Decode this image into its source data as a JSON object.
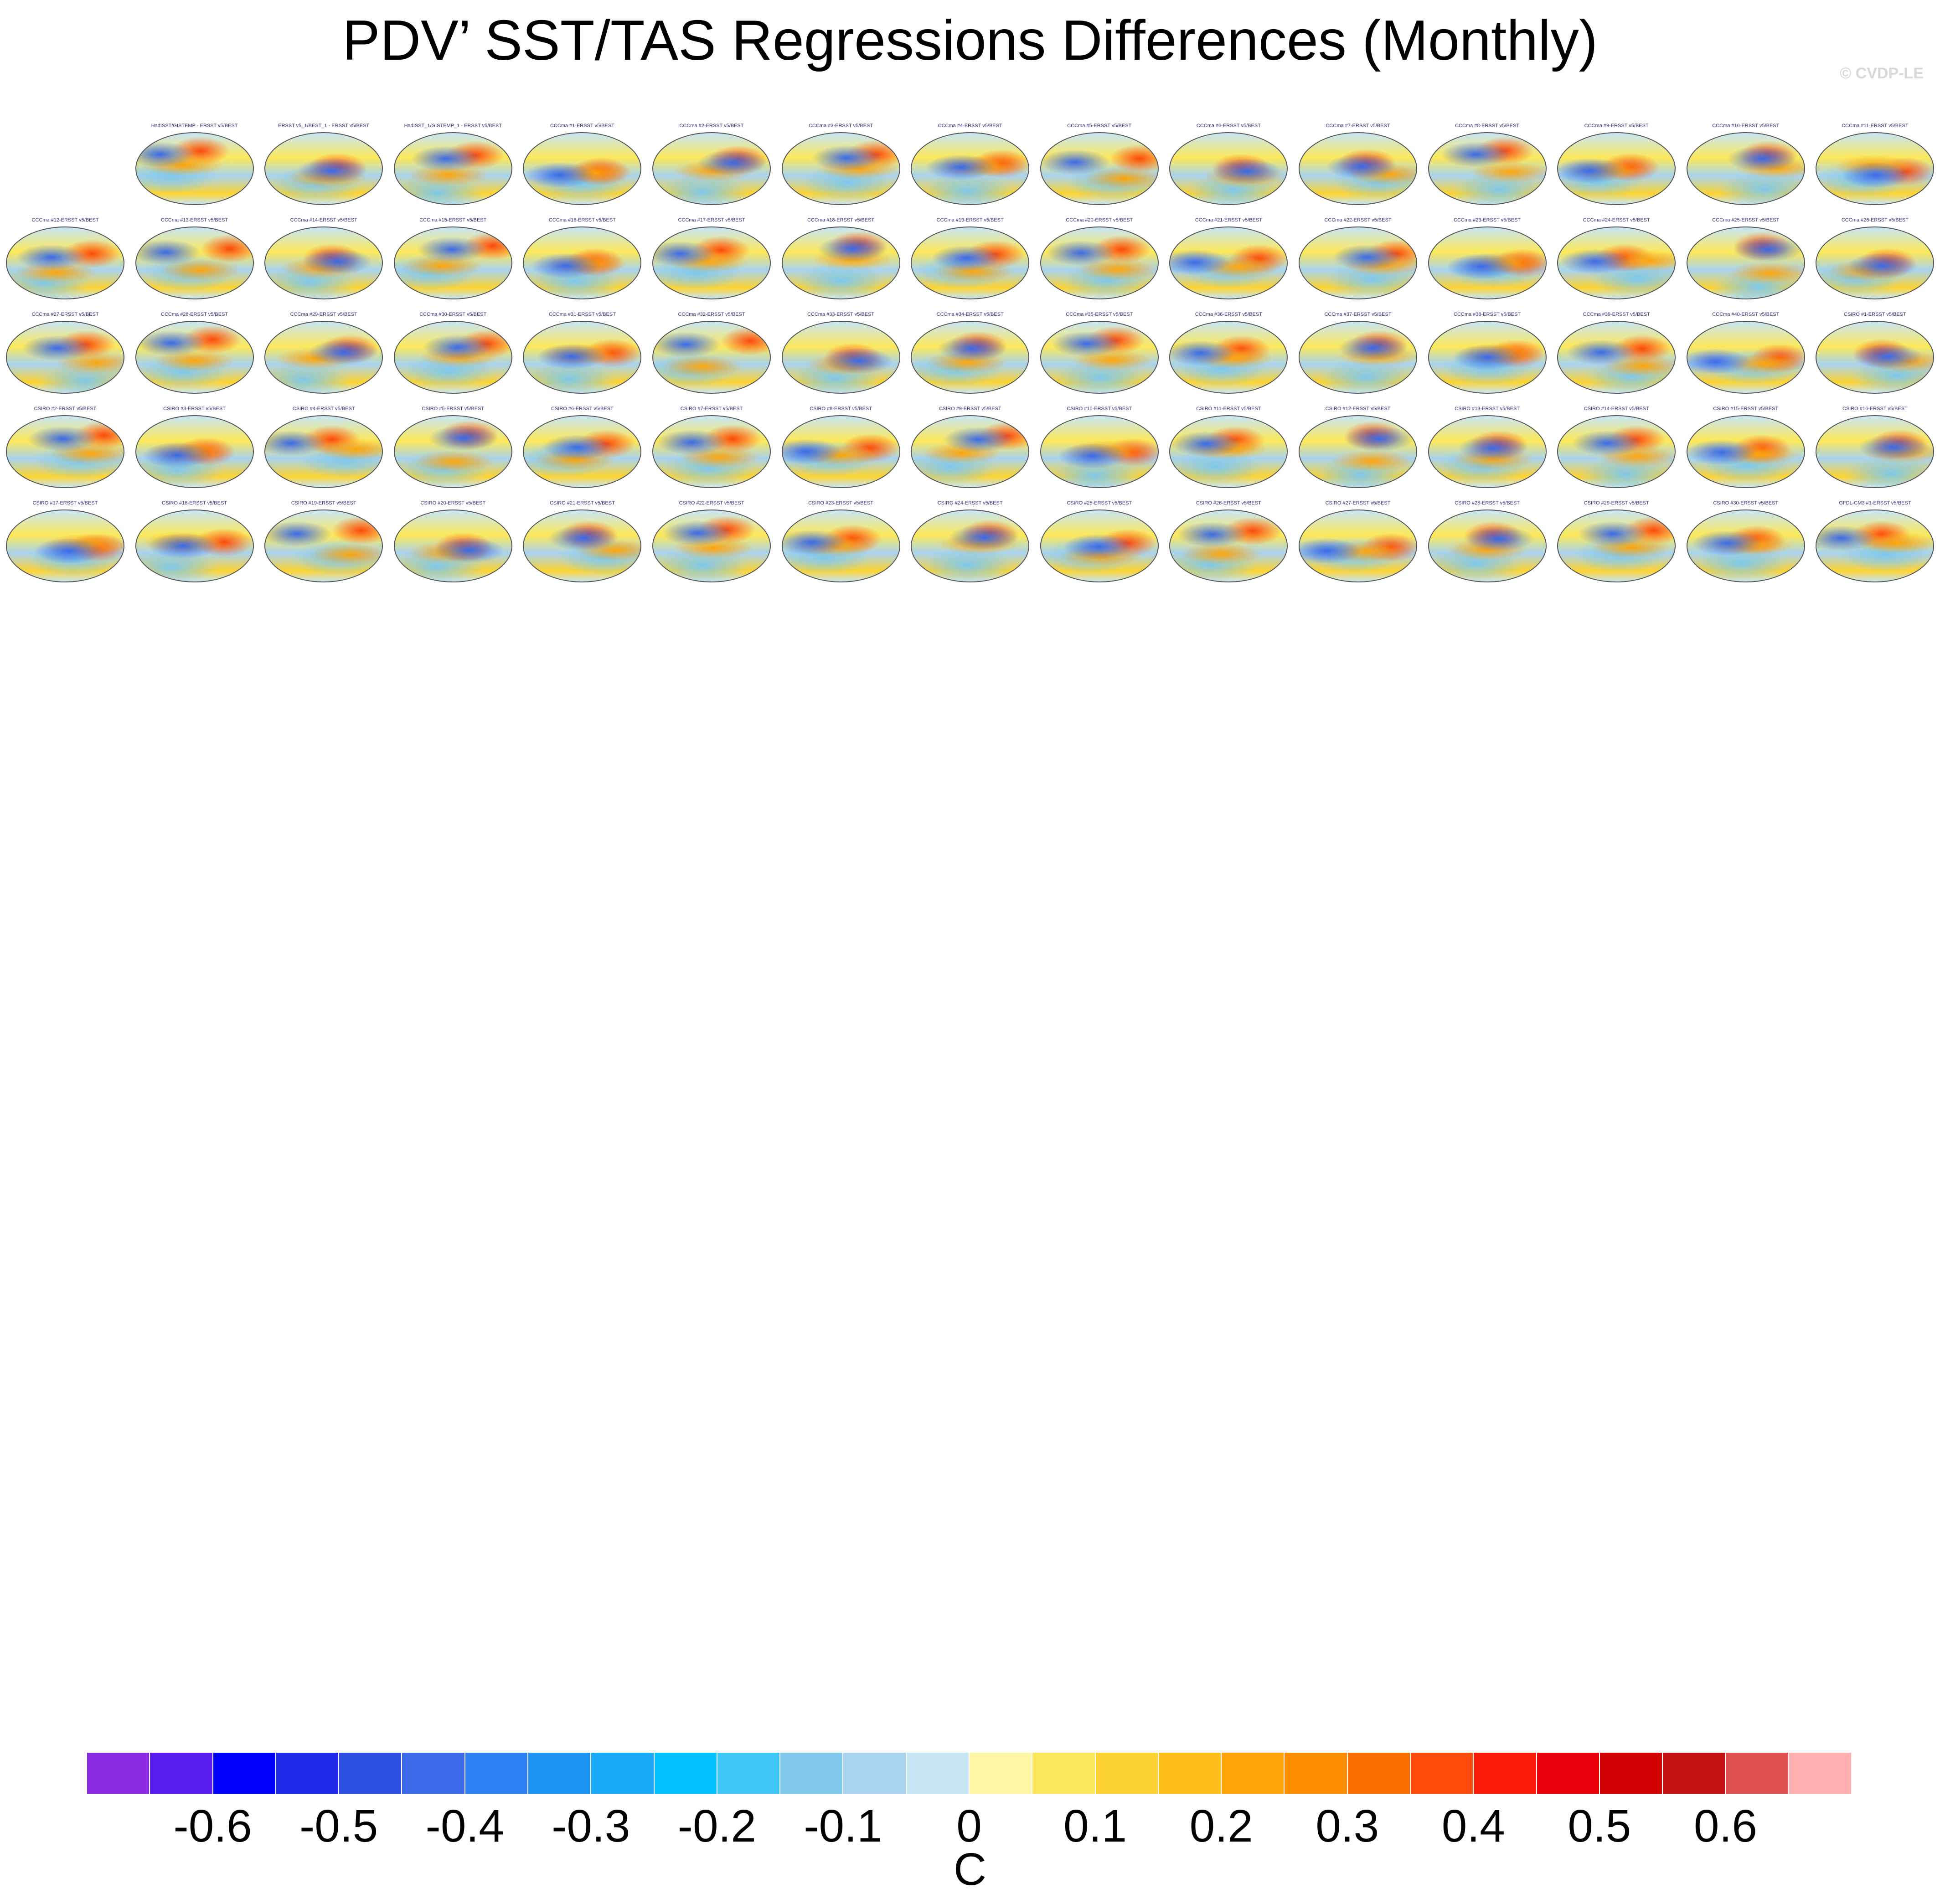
{
  "title": "PDV’ SST/TAS Regressions Differences (Monthly)",
  "credit": "© CVDP-LE",
  "chart_data": {
    "type": "heatmap",
    "title": "PDV’ SST/TAS Regressions Differences (Monthly)",
    "colorbar": {
      "units": "C",
      "tick_labels": [
        "-0.6",
        "-0.5",
        "-0.4",
        "-0.3",
        "-0.2",
        "-0.1",
        "0",
        "0.1",
        "0.2",
        "0.3",
        "0.4",
        "0.5",
        "0.6"
      ],
      "tick_values": [
        -0.6,
        -0.5,
        -0.4,
        -0.3,
        -0.2,
        -0.1,
        0,
        0.1,
        0.2,
        0.3,
        0.4,
        0.5,
        0.6
      ],
      "colors": [
        "#8a2be2",
        "#5a1ef0",
        "#0000ff",
        "#1e28e6",
        "#2f4fe0",
        "#3a6ae8",
        "#2f80f0",
        "#1e95f5",
        "#17a8f8",
        "#00c0ff",
        "#40c6f4",
        "#7fc8ec",
        "#a8d3f0",
        "#c8e6f5",
        "#fff6a8",
        "#fce85a",
        "#fcd333",
        "#fdbd1a",
        "#fda40a",
        "#fd8c00",
        "#fc7000",
        "#fb4a0a",
        "#fa1e0a",
        "#e8000a",
        "#d00000",
        "#c41010",
        "#e05050",
        "#ffb0b0"
      ]
    },
    "panels": [
      {
        "label": "HadISST/GISTEMP - ERSST v5/BEST",
        "row": 0,
        "col": 1
      },
      {
        "label": "ERSST v5_1/BEST_1 - ERSST v5/BEST",
        "row": 0,
        "col": 2
      },
      {
        "label": "HadISST_1/GISTEMP_1 - ERSST v5/BEST",
        "row": 0,
        "col": 3
      },
      {
        "label": "CCCma #1-ERSST v5/BEST",
        "row": 0,
        "col": 4
      },
      {
        "label": "CCCma #2-ERSST v5/BEST",
        "row": 0,
        "col": 5
      },
      {
        "label": "CCCma #3-ERSST v5/BEST",
        "row": 0,
        "col": 6
      },
      {
        "label": "CCCma #4-ERSST v5/BEST",
        "row": 0,
        "col": 7
      },
      {
        "label": "CCCma #5-ERSST v5/BEST",
        "row": 0,
        "col": 8
      },
      {
        "label": "CCCma #6-ERSST v5/BEST",
        "row": 0,
        "col": 9
      },
      {
        "label": "CCCma #7-ERSST v5/BEST",
        "row": 0,
        "col": 10
      },
      {
        "label": "CCCma #8-ERSST v5/BEST",
        "row": 0,
        "col": 11
      },
      {
        "label": "CCCma #9-ERSST v5/BEST",
        "row": 0,
        "col": 12
      },
      {
        "label": "CCCma #10-ERSST v5/BEST",
        "row": 0,
        "col": 13
      },
      {
        "label": "CCCma #11-ERSST v5/BEST",
        "row": 0,
        "col": 14
      },
      {
        "label": "CCCma #12-ERSST v5/BEST",
        "row": 1,
        "col": 0
      },
      {
        "label": "CCCma #13-ERSST v5/BEST",
        "row": 1,
        "col": 1
      },
      {
        "label": "CCCma #14-ERSST v5/BEST",
        "row": 1,
        "col": 2
      },
      {
        "label": "CCCma #15-ERSST v5/BEST",
        "row": 1,
        "col": 3
      },
      {
        "label": "CCCma #16-ERSST v5/BEST",
        "row": 1,
        "col": 4
      },
      {
        "label": "CCCma #17-ERSST v5/BEST",
        "row": 1,
        "col": 5
      },
      {
        "label": "CCCma #18-ERSST v5/BEST",
        "row": 1,
        "col": 6
      },
      {
        "label": "CCCma #19-ERSST v5/BEST",
        "row": 1,
        "col": 7
      },
      {
        "label": "CCCma #20-ERSST v5/BEST",
        "row": 1,
        "col": 8
      },
      {
        "label": "CCCma #21-ERSST v5/BEST",
        "row": 1,
        "col": 9
      },
      {
        "label": "CCCma #22-ERSST v5/BEST",
        "row": 1,
        "col": 10
      },
      {
        "label": "CCCma #23-ERSST v5/BEST",
        "row": 1,
        "col": 11
      },
      {
        "label": "CCCma #24-ERSST v5/BEST",
        "row": 1,
        "col": 12
      },
      {
        "label": "CCCma #25-ERSST v5/BEST",
        "row": 1,
        "col": 13
      },
      {
        "label": "CCCma #26-ERSST v5/BEST",
        "row": 1,
        "col": 14
      },
      {
        "label": "CCCma #27-ERSST v5/BEST",
        "row": 2,
        "col": 0
      },
      {
        "label": "CCCma #28-ERSST v5/BEST",
        "row": 2,
        "col": 1
      },
      {
        "label": "CCCma #29-ERSST v5/BEST",
        "row": 2,
        "col": 2
      },
      {
        "label": "CCCma #30-ERSST v5/BEST",
        "row": 2,
        "col": 3
      },
      {
        "label": "CCCma #31-ERSST v5/BEST",
        "row": 2,
        "col": 4
      },
      {
        "label": "CCCma #32-ERSST v5/BEST",
        "row": 2,
        "col": 5
      },
      {
        "label": "CCCma #33-ERSST v5/BEST",
        "row": 2,
        "col": 6
      },
      {
        "label": "CCCma #34-ERSST v5/BEST",
        "row": 2,
        "col": 7
      },
      {
        "label": "CCCma #35-ERSST v5/BEST",
        "row": 2,
        "col": 8
      },
      {
        "label": "CCCma #36-ERSST v5/BEST",
        "row": 2,
        "col": 9
      },
      {
        "label": "CCCma #37-ERSST v5/BEST",
        "row": 2,
        "col": 10
      },
      {
        "label": "CCCma #38-ERSST v5/BEST",
        "row": 2,
        "col": 11
      },
      {
        "label": "CCCma #39-ERSST v5/BEST",
        "row": 2,
        "col": 12
      },
      {
        "label": "CCCma #40-ERSST v5/BEST",
        "row": 2,
        "col": 13
      },
      {
        "label": "CSIRO #1-ERSST v5/BEST",
        "row": 2,
        "col": 14
      },
      {
        "label": "CSIRO #2-ERSST v5/BEST",
        "row": 3,
        "col": 0
      },
      {
        "label": "CSIRO #3-ERSST v5/BEST",
        "row": 3,
        "col": 1
      },
      {
        "label": "CSIRO #4-ERSST v5/BEST",
        "row": 3,
        "col": 2
      },
      {
        "label": "CSIRO #5-ERSST v5/BEST",
        "row": 3,
        "col": 3
      },
      {
        "label": "CSIRO #6-ERSST v5/BEST",
        "row": 3,
        "col": 4
      },
      {
        "label": "CSIRO #7-ERSST v5/BEST",
        "row": 3,
        "col": 5
      },
      {
        "label": "CSIRO #8-ERSST v5/BEST",
        "row": 3,
        "col": 6
      },
      {
        "label": "CSIRO #9-ERSST v5/BEST",
        "row": 3,
        "col": 7
      },
      {
        "label": "CSIRO #10-ERSST v5/BEST",
        "row": 3,
        "col": 8
      },
      {
        "label": "CSIRO #11-ERSST v5/BEST",
        "row": 3,
        "col": 9
      },
      {
        "label": "CSIRO #12-ERSST v5/BEST",
        "row": 3,
        "col": 10
      },
      {
        "label": "CSIRO #13-ERSST v5/BEST",
        "row": 3,
        "col": 11
      },
      {
        "label": "CSIRO #14-ERSST v5/BEST",
        "row": 3,
        "col": 12
      },
      {
        "label": "CSIRO #15-ERSST v5/BEST",
        "row": 3,
        "col": 13
      },
      {
        "label": "CSIRO #16-ERSST v5/BEST",
        "row": 3,
        "col": 14
      },
      {
        "label": "CSIRO #17-ERSST v5/BEST",
        "row": 4,
        "col": 0
      },
      {
        "label": "CSIRO #18-ERSST v5/BEST",
        "row": 4,
        "col": 1
      },
      {
        "label": "CSIRO #19-ERSST v5/BEST",
        "row": 4,
        "col": 2
      },
      {
        "label": "CSIRO #20-ERSST v5/BEST",
        "row": 4,
        "col": 3
      },
      {
        "label": "CSIRO #21-ERSST v5/BEST",
        "row": 4,
        "col": 4
      },
      {
        "label": "CSIRO #22-ERSST v5/BEST",
        "row": 4,
        "col": 5
      },
      {
        "label": "CSIRO #23-ERSST v5/BEST",
        "row": 4,
        "col": 6
      },
      {
        "label": "CSIRO #24-ERSST v5/BEST",
        "row": 4,
        "col": 7
      },
      {
        "label": "CSIRO #25-ERSST v5/BEST",
        "row": 4,
        "col": 8
      },
      {
        "label": "CSIRO #26-ERSST v5/BEST",
        "row": 4,
        "col": 9
      },
      {
        "label": "CSIRO #27-ERSST v5/BEST",
        "row": 4,
        "col": 10
      },
      {
        "label": "CSIRO #28-ERSST v5/BEST",
        "row": 4,
        "col": 11
      },
      {
        "label": "CSIRO #29-ERSST v5/BEST",
        "row": 4,
        "col": 12
      },
      {
        "label": "CSIRO #30-ERSST v5/BEST",
        "row": 4,
        "col": 13
      },
      {
        "label": "GFDL-CM3 #1-ERSST v5/BEST",
        "row": 4,
        "col": 14
      }
    ]
  }
}
